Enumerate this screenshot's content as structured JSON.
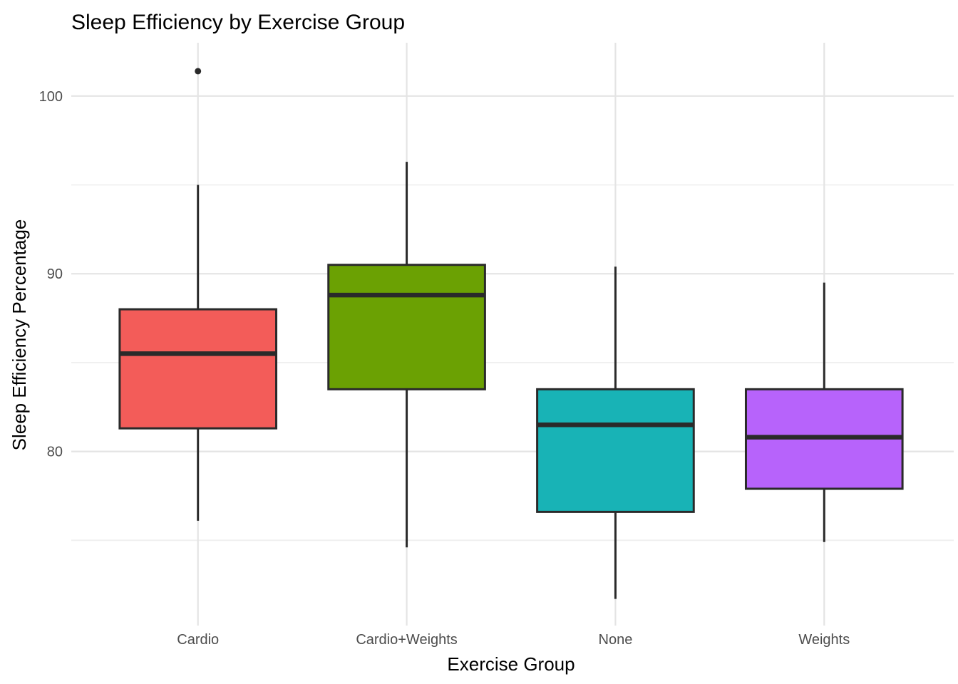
{
  "chart_data": {
    "type": "box",
    "title": "Sleep Efficiency by Exercise Group",
    "xlabel": "Exercise Group",
    "ylabel": "Sleep Efficiency Percentage",
    "categories": [
      "Cardio",
      "Cardio+Weights",
      "None",
      "Weights"
    ],
    "y_ticks": [
      100,
      90,
      80
    ],
    "y_tick_labels": [
      "100",
      "90",
      "80"
    ],
    "y_minor_gridlines": [
      95,
      85,
      75
    ],
    "ylim": [
      70.2,
      103
    ],
    "grid": "horizontal major+minor, vertical major at category centers, no axis lines, white panel",
    "legend": "none",
    "series": [
      {
        "name": "Cardio",
        "min": 76.1,
        "q1": 81.3,
        "median": 85.5,
        "q3": 88.0,
        "max": 95.0,
        "outliers": [
          101.4
        ],
        "fill": "#F35C59"
      },
      {
        "name": "Cardio+Weights",
        "min": 74.6,
        "q1": 83.5,
        "median": 88.8,
        "q3": 90.5,
        "max": 96.3,
        "outliers": [],
        "fill": "#6BA103"
      },
      {
        "name": "None",
        "min": 71.7,
        "q1": 76.6,
        "median": 81.5,
        "q3": 83.5,
        "max": 90.4,
        "outliers": [],
        "fill": "#18B3B6"
      },
      {
        "name": "Weights",
        "min": 74.9,
        "q1": 77.9,
        "median": 80.8,
        "q3": 83.5,
        "max": 89.5,
        "outliers": [],
        "fill": "#B763FB"
      }
    ],
    "colors": {
      "box_stroke": "#2A2A2A",
      "median_stroke": "#2A2A2A",
      "outlier": "#2A2A2A",
      "grid_major": "#E4E4E4",
      "grid_minor": "#EFEFEF",
      "tick_label": "#4D4D4D",
      "title": "#000000",
      "background": "#FFFFFF"
    }
  }
}
